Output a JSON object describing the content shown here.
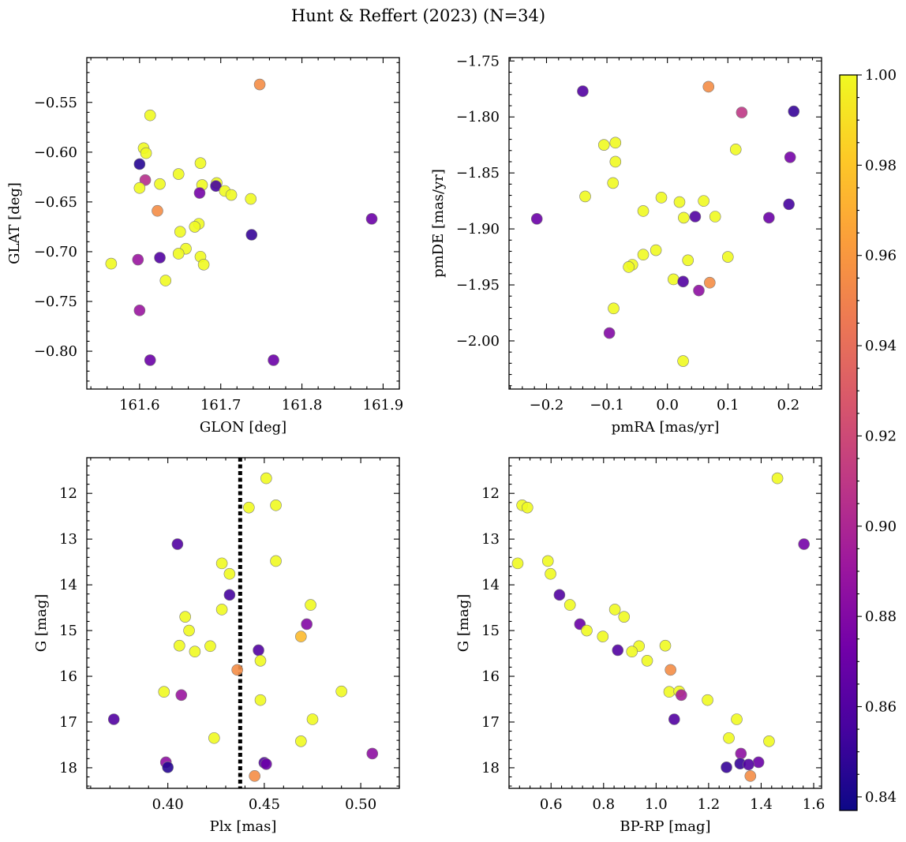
{
  "figure": {
    "title": "Hunt & Reffert (2023) (N=34)"
  },
  "colorbar": {
    "range": [
      0.837,
      1.0
    ],
    "ticks": [
      0.84,
      0.86,
      0.88,
      0.9,
      0.92,
      0.94,
      0.96,
      0.98,
      1.0
    ],
    "tick_labels": [
      "0.84",
      "0.86",
      "0.88",
      "0.90",
      "0.92",
      "0.94",
      "0.96",
      "0.98",
      "1.00"
    ],
    "colormap": "plasma",
    "stops": [
      "#0d0887",
      "#46039f",
      "#7201a8",
      "#9c179e",
      "#bd3786",
      "#d8576b",
      "#ed7953",
      "#fb9f3a",
      "#fdca26",
      "#f0f921"
    ]
  },
  "chart_data": [
    {
      "type": "scatter",
      "name": "glon-glat",
      "xlabel": "GLON [deg]",
      "ylabel": "GLAT [deg]",
      "xlim": [
        161.535,
        161.92
      ],
      "ylim": [
        -0.838,
        -0.505
      ],
      "y_inverted": false,
      "xticks": [
        161.6,
        161.7,
        161.8,
        161.9
      ],
      "xtick_labels": [
        "161.6",
        "161.7",
        "161.8",
        "161.9"
      ],
      "yticks": [
        -0.8,
        -0.75,
        -0.7,
        -0.65,
        -0.6,
        -0.55
      ],
      "ytick_labels": [
        "−0.80",
        "−0.75",
        "−0.70",
        "−0.65",
        "−0.60",
        "−0.55"
      ],
      "points": [
        {
          "x": 161.748,
          "y": -0.532,
          "c": 0.955
        },
        {
          "x": 161.613,
          "y": -0.563,
          "c": 1.0
        },
        {
          "x": 161.605,
          "y": -0.596,
          "c": 1.0
        },
        {
          "x": 161.608,
          "y": -0.601,
          "c": 1.0
        },
        {
          "x": 161.6,
          "y": -0.612,
          "c": 0.845
        },
        {
          "x": 161.675,
          "y": -0.611,
          "c": 1.0
        },
        {
          "x": 161.648,
          "y": -0.622,
          "c": 1.0
        },
        {
          "x": 161.607,
          "y": -0.628,
          "c": 0.905
        },
        {
          "x": 161.625,
          "y": -0.632,
          "c": 1.0
        },
        {
          "x": 161.677,
          "y": -0.633,
          "c": 1.0
        },
        {
          "x": 161.695,
          "y": -0.631,
          "c": 1.0
        },
        {
          "x": 161.694,
          "y": -0.634,
          "c": 0.855
        },
        {
          "x": 161.6,
          "y": -0.636,
          "c": 1.0
        },
        {
          "x": 161.674,
          "y": -0.641,
          "c": 0.875
        },
        {
          "x": 161.705,
          "y": -0.639,
          "c": 1.0
        },
        {
          "x": 161.713,
          "y": -0.643,
          "c": 1.0
        },
        {
          "x": 161.737,
          "y": -0.647,
          "c": 1.0
        },
        {
          "x": 161.622,
          "y": -0.659,
          "c": 0.955
        },
        {
          "x": 161.886,
          "y": -0.667,
          "c": 0.87
        },
        {
          "x": 161.673,
          "y": -0.672,
          "c": 1.0
        },
        {
          "x": 161.668,
          "y": -0.675,
          "c": 1.0
        },
        {
          "x": 161.65,
          "y": -0.68,
          "c": 1.0
        },
        {
          "x": 161.738,
          "y": -0.683,
          "c": 0.85
        },
        {
          "x": 161.657,
          "y": -0.697,
          "c": 1.0
        },
        {
          "x": 161.648,
          "y": -0.702,
          "c": 1.0
        },
        {
          "x": 161.675,
          "y": -0.705,
          "c": 1.0
        },
        {
          "x": 161.625,
          "y": -0.706,
          "c": 0.86
        },
        {
          "x": 161.598,
          "y": -0.708,
          "c": 0.89
        },
        {
          "x": 161.565,
          "y": -0.712,
          "c": 1.0
        },
        {
          "x": 161.679,
          "y": -0.713,
          "c": 1.0
        },
        {
          "x": 161.632,
          "y": -0.729,
          "c": 1.0
        },
        {
          "x": 161.6,
          "y": -0.759,
          "c": 0.89
        },
        {
          "x": 161.613,
          "y": -0.809,
          "c": 0.87
        },
        {
          "x": 161.765,
          "y": -0.809,
          "c": 0.87
        }
      ]
    },
    {
      "type": "scatter",
      "name": "pmra-pmde",
      "xlabel": "pmRA [mas/yr]",
      "ylabel": "pmDE [mas/yr]",
      "xlim": [
        -0.262,
        0.255
      ],
      "ylim": [
        -2.043,
        -1.747
      ],
      "y_inverted": false,
      "xticks": [
        -0.2,
        -0.1,
        0.0,
        0.1,
        0.2
      ],
      "xtick_labels": [
        "−0.2",
        "−0.1",
        "0.0",
        "0.1",
        "0.2"
      ],
      "yticks": [
        -2.0,
        -1.95,
        -1.9,
        -1.85,
        -1.8,
        -1.75
      ],
      "ytick_labels": [
        "−2.00",
        "−1.95",
        "−1.90",
        "−1.85",
        "−1.80",
        "−1.75"
      ],
      "points": [
        {
          "x": 0.068,
          "y": -1.773,
          "c": 0.955
        },
        {
          "x": -0.14,
          "y": -1.777,
          "c": 0.86
        },
        {
          "x": 0.209,
          "y": -1.795,
          "c": 0.85
        },
        {
          "x": 0.123,
          "y": -1.796,
          "c": 0.91
        },
        {
          "x": -0.086,
          "y": -1.823,
          "c": 1.0
        },
        {
          "x": -0.105,
          "y": -1.825,
          "c": 1.0
        },
        {
          "x": 0.113,
          "y": -1.829,
          "c": 1.0
        },
        {
          "x": 0.203,
          "y": -1.836,
          "c": 0.875
        },
        {
          "x": -0.086,
          "y": -1.84,
          "c": 1.0
        },
        {
          "x": -0.09,
          "y": -1.859,
          "c": 1.0
        },
        {
          "x": -0.136,
          "y": -1.871,
          "c": 1.0
        },
        {
          "x": -0.01,
          "y": -1.872,
          "c": 1.0
        },
        {
          "x": 0.02,
          "y": -1.876,
          "c": 1.0
        },
        {
          "x": 0.06,
          "y": -1.875,
          "c": 1.0
        },
        {
          "x": 0.201,
          "y": -1.878,
          "c": 0.855
        },
        {
          "x": -0.04,
          "y": -1.884,
          "c": 1.0
        },
        {
          "x": 0.046,
          "y": -1.889,
          "c": 0.86
        },
        {
          "x": 0.027,
          "y": -1.89,
          "c": 1.0
        },
        {
          "x": 0.079,
          "y": -1.889,
          "c": 1.0
        },
        {
          "x": 0.168,
          "y": -1.89,
          "c": 0.87
        },
        {
          "x": -0.216,
          "y": -1.891,
          "c": 0.87
        },
        {
          "x": -0.019,
          "y": -1.919,
          "c": 1.0
        },
        {
          "x": -0.04,
          "y": -1.923,
          "c": 1.0
        },
        {
          "x": 0.1,
          "y": -1.925,
          "c": 1.0
        },
        {
          "x": 0.034,
          "y": -1.928,
          "c": 1.0
        },
        {
          "x": -0.058,
          "y": -1.932,
          "c": 1.0
        },
        {
          "x": -0.064,
          "y": -1.934,
          "c": 1.0
        },
        {
          "x": 0.01,
          "y": -1.945,
          "c": 1.0
        },
        {
          "x": 0.026,
          "y": -1.947,
          "c": 0.86
        },
        {
          "x": 0.07,
          "y": -1.948,
          "c": 0.955
        },
        {
          "x": 0.052,
          "y": -1.955,
          "c": 0.885
        },
        {
          "x": -0.089,
          "y": -1.971,
          "c": 1.0
        },
        {
          "x": -0.096,
          "y": -1.993,
          "c": 0.88
        },
        {
          "x": 0.026,
          "y": -2.018,
          "c": 1.0
        }
      ]
    },
    {
      "type": "scatter",
      "name": "plx-g",
      "xlabel": "Plx [mas]",
      "ylabel": "G [mag]",
      "xlim": [
        0.358,
        0.52
      ],
      "ylim": [
        18.45,
        11.22
      ],
      "y_inverted": true,
      "xticks": [
        0.4,
        0.45,
        0.5
      ],
      "xtick_labels": [
        "0.40",
        "0.45",
        "0.50"
      ],
      "yticks": [
        12,
        13,
        14,
        15,
        16,
        17,
        18
      ],
      "ytick_labels": [
        "12",
        "13",
        "14",
        "15",
        "16",
        "17",
        "18"
      ],
      "vline": {
        "x": 0.4375,
        "style": "dotted"
      },
      "points": [
        {
          "x": 0.451,
          "y": 11.67,
          "c": 1.0
        },
        {
          "x": 0.456,
          "y": 12.26,
          "c": 1.0
        },
        {
          "x": 0.442,
          "y": 12.31,
          "c": 1.0
        },
        {
          "x": 0.405,
          "y": 13.11,
          "c": 0.86
        },
        {
          "x": 0.456,
          "y": 13.48,
          "c": 1.0
        },
        {
          "x": 0.428,
          "y": 13.53,
          "c": 1.0
        },
        {
          "x": 0.432,
          "y": 13.76,
          "c": 1.0
        },
        {
          "x": 0.432,
          "y": 14.22,
          "c": 0.855
        },
        {
          "x": 0.474,
          "y": 14.44,
          "c": 1.0
        },
        {
          "x": 0.428,
          "y": 14.54,
          "c": 1.0
        },
        {
          "x": 0.409,
          "y": 14.7,
          "c": 1.0
        },
        {
          "x": 0.472,
          "y": 14.86,
          "c": 0.88
        },
        {
          "x": 0.411,
          "y": 15.0,
          "c": 1.0
        },
        {
          "x": 0.469,
          "y": 15.13,
          "c": 0.975
        },
        {
          "x": 0.406,
          "y": 15.33,
          "c": 1.0
        },
        {
          "x": 0.422,
          "y": 15.34,
          "c": 1.0
        },
        {
          "x": 0.447,
          "y": 15.43,
          "c": 0.86
        },
        {
          "x": 0.414,
          "y": 15.46,
          "c": 1.0
        },
        {
          "x": 0.448,
          "y": 15.66,
          "c": 1.0
        },
        {
          "x": 0.436,
          "y": 15.86,
          "c": 0.955
        },
        {
          "x": 0.398,
          "y": 16.34,
          "c": 1.0
        },
        {
          "x": 0.49,
          "y": 16.33,
          "c": 1.0
        },
        {
          "x": 0.407,
          "y": 16.41,
          "c": 0.89
        },
        {
          "x": 0.448,
          "y": 16.52,
          "c": 1.0
        },
        {
          "x": 0.372,
          "y": 16.94,
          "c": 0.86
        },
        {
          "x": 0.475,
          "y": 16.94,
          "c": 1.0
        },
        {
          "x": 0.424,
          "y": 17.35,
          "c": 1.0
        },
        {
          "x": 0.469,
          "y": 17.42,
          "c": 1.0
        },
        {
          "x": 0.506,
          "y": 17.69,
          "c": 0.885
        },
        {
          "x": 0.399,
          "y": 17.88,
          "c": 0.885
        },
        {
          "x": 0.45,
          "y": 17.89,
          "c": 0.86
        },
        {
          "x": 0.451,
          "y": 17.92,
          "c": 0.87
        },
        {
          "x": 0.4,
          "y": 17.99,
          "c": 0.845
        },
        {
          "x": 0.445,
          "y": 18.18,
          "c": 0.955
        }
      ]
    },
    {
      "type": "scatter",
      "name": "bprp-g",
      "xlabel": "BP-RP [mag]",
      "ylabel": "G [mag]",
      "xlim": [
        0.44,
        1.63
      ],
      "ylim": [
        18.45,
        11.22
      ],
      "y_inverted": true,
      "xticks": [
        0.6,
        0.8,
        1.0,
        1.2,
        1.4,
        1.6
      ],
      "xtick_labels": [
        "0.6",
        "0.8",
        "1.0",
        "1.2",
        "1.4",
        "1.6"
      ],
      "yticks": [
        12,
        13,
        14,
        15,
        16,
        17,
        18
      ],
      "ytick_labels": [
        "12",
        "13",
        "14",
        "15",
        "16",
        "17",
        "18"
      ],
      "points": [
        {
          "x": 1.462,
          "y": 11.67,
          "c": 1.0
        },
        {
          "x": 0.49,
          "y": 12.26,
          "c": 1.0
        },
        {
          "x": 0.51,
          "y": 12.31,
          "c": 1.0
        },
        {
          "x": 1.563,
          "y": 13.11,
          "c": 0.875
        },
        {
          "x": 0.473,
          "y": 13.53,
          "c": 1.0
        },
        {
          "x": 0.588,
          "y": 13.48,
          "c": 1.0
        },
        {
          "x": 0.598,
          "y": 13.76,
          "c": 1.0
        },
        {
          "x": 0.632,
          "y": 14.22,
          "c": 0.86
        },
        {
          "x": 0.672,
          "y": 14.44,
          "c": 1.0
        },
        {
          "x": 0.843,
          "y": 14.54,
          "c": 1.0
        },
        {
          "x": 0.878,
          "y": 14.7,
          "c": 1.0
        },
        {
          "x": 0.71,
          "y": 14.86,
          "c": 0.87
        },
        {
          "x": 0.736,
          "y": 15.0,
          "c": 1.0
        },
        {
          "x": 0.797,
          "y": 15.13,
          "c": 1.0
        },
        {
          "x": 0.935,
          "y": 15.34,
          "c": 1.0
        },
        {
          "x": 1.035,
          "y": 15.33,
          "c": 1.0
        },
        {
          "x": 0.854,
          "y": 15.43,
          "c": 0.86
        },
        {
          "x": 0.908,
          "y": 15.46,
          "c": 1.0
        },
        {
          "x": 0.966,
          "y": 15.66,
          "c": 1.0
        },
        {
          "x": 1.055,
          "y": 15.86,
          "c": 0.955
        },
        {
          "x": 1.05,
          "y": 16.34,
          "c": 1.0
        },
        {
          "x": 1.088,
          "y": 16.33,
          "c": 1.0
        },
        {
          "x": 1.096,
          "y": 16.41,
          "c": 0.895
        },
        {
          "x": 1.196,
          "y": 16.52,
          "c": 1.0
        },
        {
          "x": 1.069,
          "y": 16.94,
          "c": 0.86
        },
        {
          "x": 1.307,
          "y": 16.94,
          "c": 1.0
        },
        {
          "x": 1.277,
          "y": 17.35,
          "c": 1.0
        },
        {
          "x": 1.43,
          "y": 17.42,
          "c": 1.0
        },
        {
          "x": 1.323,
          "y": 17.69,
          "c": 0.885
        },
        {
          "x": 1.39,
          "y": 17.88,
          "c": 0.87
        },
        {
          "x": 1.32,
          "y": 17.91,
          "c": 0.85
        },
        {
          "x": 1.352,
          "y": 17.93,
          "c": 0.86
        },
        {
          "x": 1.268,
          "y": 17.99,
          "c": 0.85
        },
        {
          "x": 1.359,
          "y": 18.18,
          "c": 0.955
        }
      ]
    }
  ]
}
